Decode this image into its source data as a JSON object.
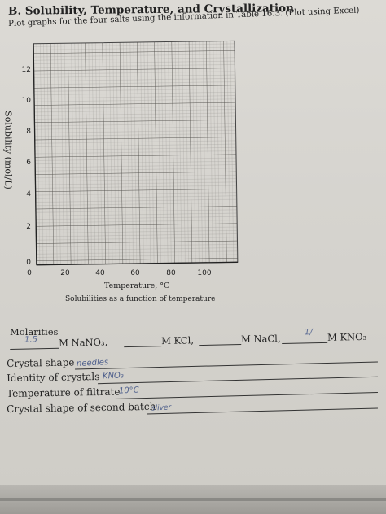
{
  "header": {
    "title": "B. Solubility, Temperature, and Crystallization"
  },
  "instructions": "Plot graphs for the four salts using the information in Table 16.3. (Plot using Excel)",
  "graph": {
    "y_axis_label": "Solubility (mol/L)",
    "y_ticks": [
      "12",
      "10",
      "8",
      "6",
      "4",
      "2",
      "0"
    ],
    "x_ticks": [
      "0",
      "20",
      "40",
      "60",
      "80",
      "100"
    ],
    "x_axis_label": "Temperature, °C",
    "caption": "Solubilities as a function of temperature"
  },
  "molarities": {
    "title": "Molarities",
    "items": [
      {
        "label": "M NaNO₃,",
        "handwritten": "1.5"
      },
      {
        "label": "M KCl,",
        "handwritten": ""
      },
      {
        "label": "M NaCl,",
        "handwritten": "1/"
      },
      {
        "label": "M KNO₃",
        "handwritten": ""
      }
    ]
  },
  "fields": [
    {
      "label": "Crystal shape",
      "value": "needles"
    },
    {
      "label": "Identity of crystals",
      "value": "KNO₃"
    },
    {
      "label": "Temperature of filtrate",
      "value": "10°C"
    },
    {
      "label": "Crystal shape of second batch",
      "value": "sliver"
    }
  ]
}
